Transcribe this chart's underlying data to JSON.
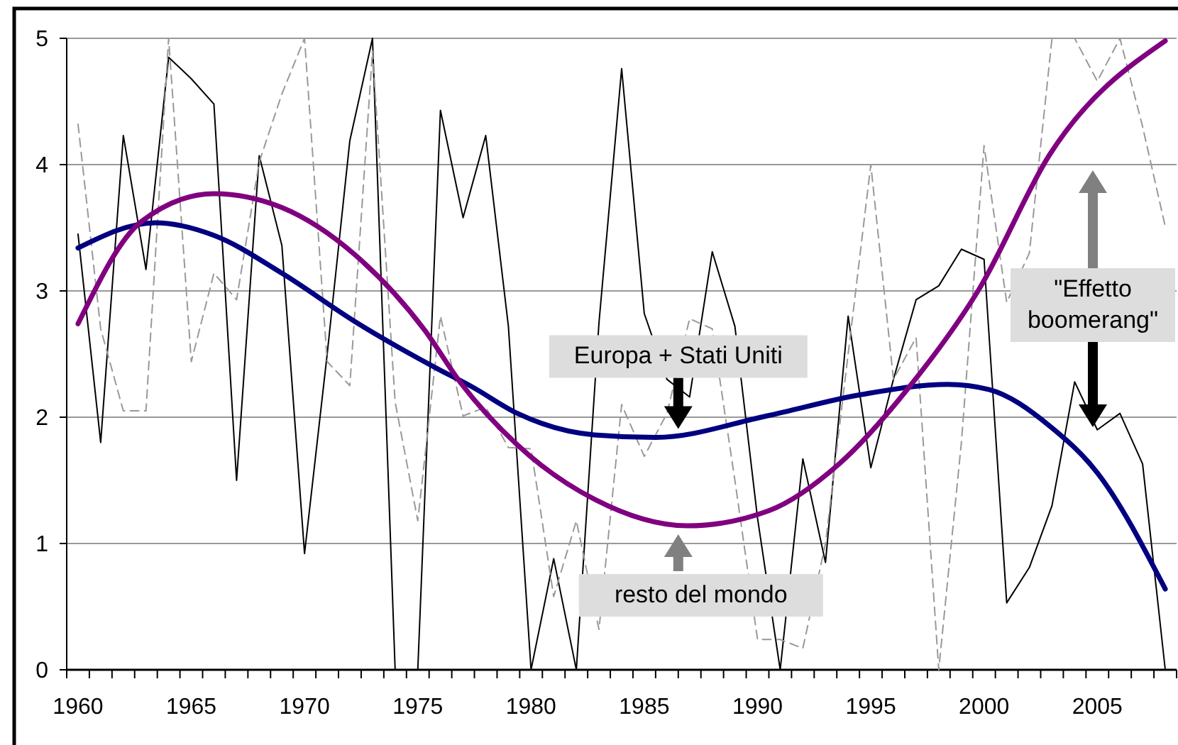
{
  "chart_data": {
    "type": "line",
    "x": [
      1960,
      1961,
      1962,
      1963,
      1964,
      1965,
      1966,
      1967,
      1968,
      1969,
      1970,
      1971,
      1972,
      1973,
      1974,
      1975,
      1976,
      1977,
      1978,
      1979,
      1980,
      1981,
      1982,
      1983,
      1984,
      1985,
      1986,
      1987,
      1988,
      1989,
      1990,
      1991,
      1992,
      1993,
      1994,
      1995,
      1996,
      1997,
      1998,
      1999,
      2000,
      2001,
      2002,
      2003,
      2004,
      2005,
      2006,
      2007,
      2008
    ],
    "xlim": [
      1959.5,
      2008.5
    ],
    "xticks": [
      {
        "value": 1960,
        "label": "1960"
      },
      {
        "value": 1965,
        "label": "1965"
      },
      {
        "value": 1970,
        "label": "1970"
      },
      {
        "value": 1975,
        "label": "1975"
      },
      {
        "value": 1980,
        "label": "1980"
      },
      {
        "value": 1985,
        "label": "1985"
      },
      {
        "value": 1990,
        "label": "1990"
      },
      {
        "value": 1995,
        "label": "1995"
      },
      {
        "value": 2000,
        "label": "2000"
      },
      {
        "value": 2005,
        "label": "2005"
      },
      {
        "value": 1959.5,
        "label": null
      },
      {
        "value": 1960.5,
        "label": null
      },
      {
        "value": 1961.5,
        "label": null
      },
      {
        "value": 1962.5,
        "label": null
      },
      {
        "value": 1963.5,
        "label": null
      },
      {
        "value": 1964.5,
        "label": null
      },
      {
        "value": 1965.5,
        "label": null
      },
      {
        "value": 1966.5,
        "label": null
      },
      {
        "value": 1967.5,
        "label": null
      },
      {
        "value": 1968.5,
        "label": null
      },
      {
        "value": 1969.5,
        "label": null
      },
      {
        "value": 1970.5,
        "label": null
      },
      {
        "value": 1971.5,
        "label": null
      },
      {
        "value": 1972.5,
        "label": null
      },
      {
        "value": 1973.5,
        "label": null
      },
      {
        "value": 1974.5,
        "label": null
      },
      {
        "value": 1975.5,
        "label": null
      },
      {
        "value": 1976.5,
        "label": null
      },
      {
        "value": 1977.5,
        "label": null
      },
      {
        "value": 1978.5,
        "label": null
      },
      {
        "value": 1979.5,
        "label": null
      },
      {
        "value": 1980.5,
        "label": null
      },
      {
        "value": 1981.5,
        "label": null
      },
      {
        "value": 1982.5,
        "label": null
      },
      {
        "value": 1983.5,
        "label": null
      },
      {
        "value": 1984.5,
        "label": null
      },
      {
        "value": 1985.5,
        "label": null
      },
      {
        "value": 1986.5,
        "label": null
      },
      {
        "value": 1987.5,
        "label": null
      },
      {
        "value": 1988.5,
        "label": null
      },
      {
        "value": 1989.5,
        "label": null
      },
      {
        "value": 1990.5,
        "label": null
      },
      {
        "value": 1991.5,
        "label": null
      },
      {
        "value": 1992.5,
        "label": null
      },
      {
        "value": 1993.5,
        "label": null
      },
      {
        "value": 1994.5,
        "label": null
      },
      {
        "value": 1995.5,
        "label": null
      },
      {
        "value": 1996.5,
        "label": null
      },
      {
        "value": 1997.5,
        "label": null
      },
      {
        "value": 1998.5,
        "label": null
      },
      {
        "value": 1999.5,
        "label": null
      },
      {
        "value": 2000.5,
        "label": null
      },
      {
        "value": 2001.5,
        "label": null
      },
      {
        "value": 2002.5,
        "label": null
      },
      {
        "value": 2003.5,
        "label": null
      },
      {
        "value": 2004.5,
        "label": null
      },
      {
        "value": 2005.5,
        "label": null
      },
      {
        "value": 2006.5,
        "label": null
      },
      {
        "value": 2007.5,
        "label": null
      },
      {
        "value": 2008.5,
        "label": null
      }
    ],
    "ylim": [
      0,
      5
    ],
    "yticks": [
      0,
      1,
      2,
      3,
      4,
      5
    ],
    "grid": "y",
    "series": [
      {
        "type": "line",
        "color": "#000000",
        "line_style": "solid",
        "values": [
          3.45,
          1.8,
          4.23,
          3.17,
          4.85,
          4.68,
          4.48,
          1.5,
          4.07,
          3.36,
          0.92,
          2.5,
          4.19,
          5,
          0,
          0,
          4.43,
          3.58,
          4.23,
          2.72,
          0,
          0.88,
          0,
          2.75,
          4.76,
          2.82,
          2.3,
          2.16,
          3.31,
          2.72,
          1.2,
          0,
          1.67,
          0.85,
          2.8,
          1.6,
          2.3,
          2.93,
          3.04,
          3.33,
          3.25,
          0.53,
          0.81,
          1.3,
          2.28,
          1.9,
          2.03,
          1.63,
          0
        ]
      },
      {
        "type": "line",
        "color": "#999999",
        "line_style": "dashed",
        "values": [
          4.32,
          2.7,
          2.05,
          2.05,
          5,
          2.44,
          3.14,
          2.93,
          4.02,
          4.56,
          5,
          2.44,
          2.25,
          4.9,
          2.12,
          1.18,
          2.8,
          2.01,
          2.08,
          1.76,
          1.75,
          0.58,
          1.18,
          0.32,
          2.1,
          1.69,
          2.03,
          2.78,
          2.7,
          1.5,
          0.24,
          0.24,
          0.17,
          1.0,
          2.5,
          4.0,
          2.3,
          2.63,
          0,
          1.8,
          4.15,
          2.91,
          3.3,
          5,
          5,
          4.66,
          5,
          4.3,
          3.51
        ]
      },
      {
        "type": "line",
        "color": "#000080",
        "line_style": "solid",
        "x": [
          1960,
          1963.4,
          1966,
          1969,
          1972.2,
          1975.7,
          1977.4,
          1979.4,
          1982.8,
          1985.5,
          1990.4,
          1994.6,
          1998.4,
          2000.2,
          2002.9,
          2005,
          2008
        ],
        "values": [
          3.34,
          3.54,
          3.44,
          3.14,
          2.76,
          2.4,
          2.24,
          2.03,
          1.86,
          1.84,
          2.01,
          2.18,
          2.26,
          2.22,
          1.93,
          1.56,
          0.64
        ]
      },
      {
        "type": "line",
        "color": "#800080",
        "line_style": "solid",
        "x": [
          1960,
          1962.8,
          1966,
          1969,
          1972.2,
          1975.3,
          1976.9,
          1979.4,
          1982.8,
          1986.9,
          1990.5,
          1993.6,
          1996.7,
          1999.8,
          2002.9,
          2008
        ],
        "values": [
          2.74,
          3.55,
          3.77,
          3.66,
          3.29,
          2.69,
          2.27,
          1.78,
          1.35,
          1.14,
          1.26,
          1.63,
          2.24,
          3.02,
          4.08,
          4.98
        ]
      }
    ],
    "annotations": [
      {
        "text": "Europa + Stati Uniti",
        "x": 1986.5,
        "y": 1.84
      },
      {
        "text": "resto del mondo",
        "x": 1986.5,
        "y": 1.14
      },
      "\"Effetto boomerang\""
    ]
  }
}
